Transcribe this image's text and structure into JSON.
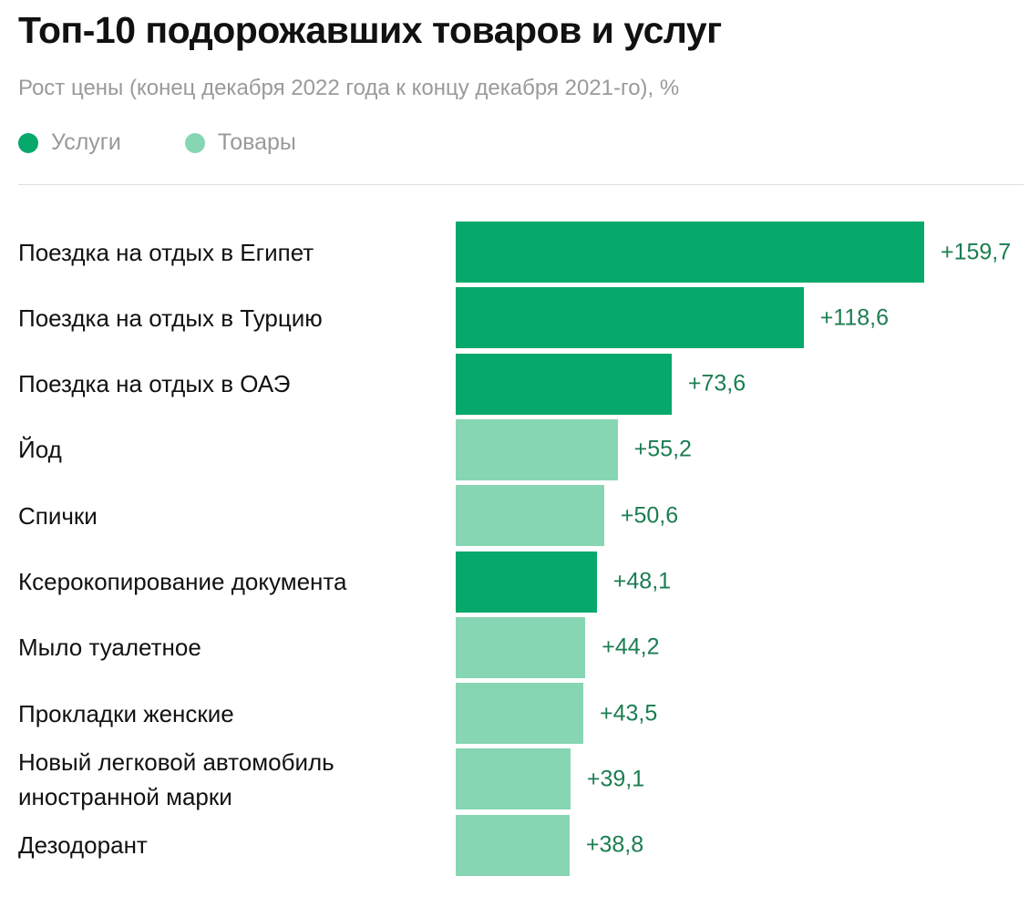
{
  "chart_data": {
    "type": "bar",
    "orientation": "horizontal",
    "title": "Топ-10 подорожавших товаров и услуг",
    "subtitle": "Рост цены (конец декабря 2022 года к концу декабря 2021-го), %",
    "categories": [
      "Поездка на отдых в Египет",
      "Поездка на отдых в Турцию",
      "Поездка на отдых в ОАЭ",
      "Йод",
      "Спички",
      "Ксерокопирование документа",
      "Мыло туалетное",
      "Прокладки женские",
      "Новый легковой автомобиль иностранной марки",
      "Дезодорант"
    ],
    "series": [
      {
        "name": "Услуги",
        "color": "#07a86b",
        "values": [
          159.7,
          118.6,
          73.6,
          null,
          null,
          48.1,
          null,
          null,
          null,
          null
        ],
        "value_labels": [
          "+159,7",
          "+118,6",
          "+73,6",
          null,
          null,
          "+48,1",
          null,
          null,
          null,
          null
        ]
      },
      {
        "name": "Товары",
        "color": "#87d6b3",
        "values": [
          null,
          null,
          null,
          55.2,
          50.6,
          null,
          44.2,
          43.5,
          39.1,
          38.8
        ],
        "value_labels": [
          null,
          null,
          null,
          "+55,2",
          "+50,6",
          null,
          "+44,2",
          "+43,5",
          "+39,1",
          "+38,8"
        ]
      }
    ]
  }
}
